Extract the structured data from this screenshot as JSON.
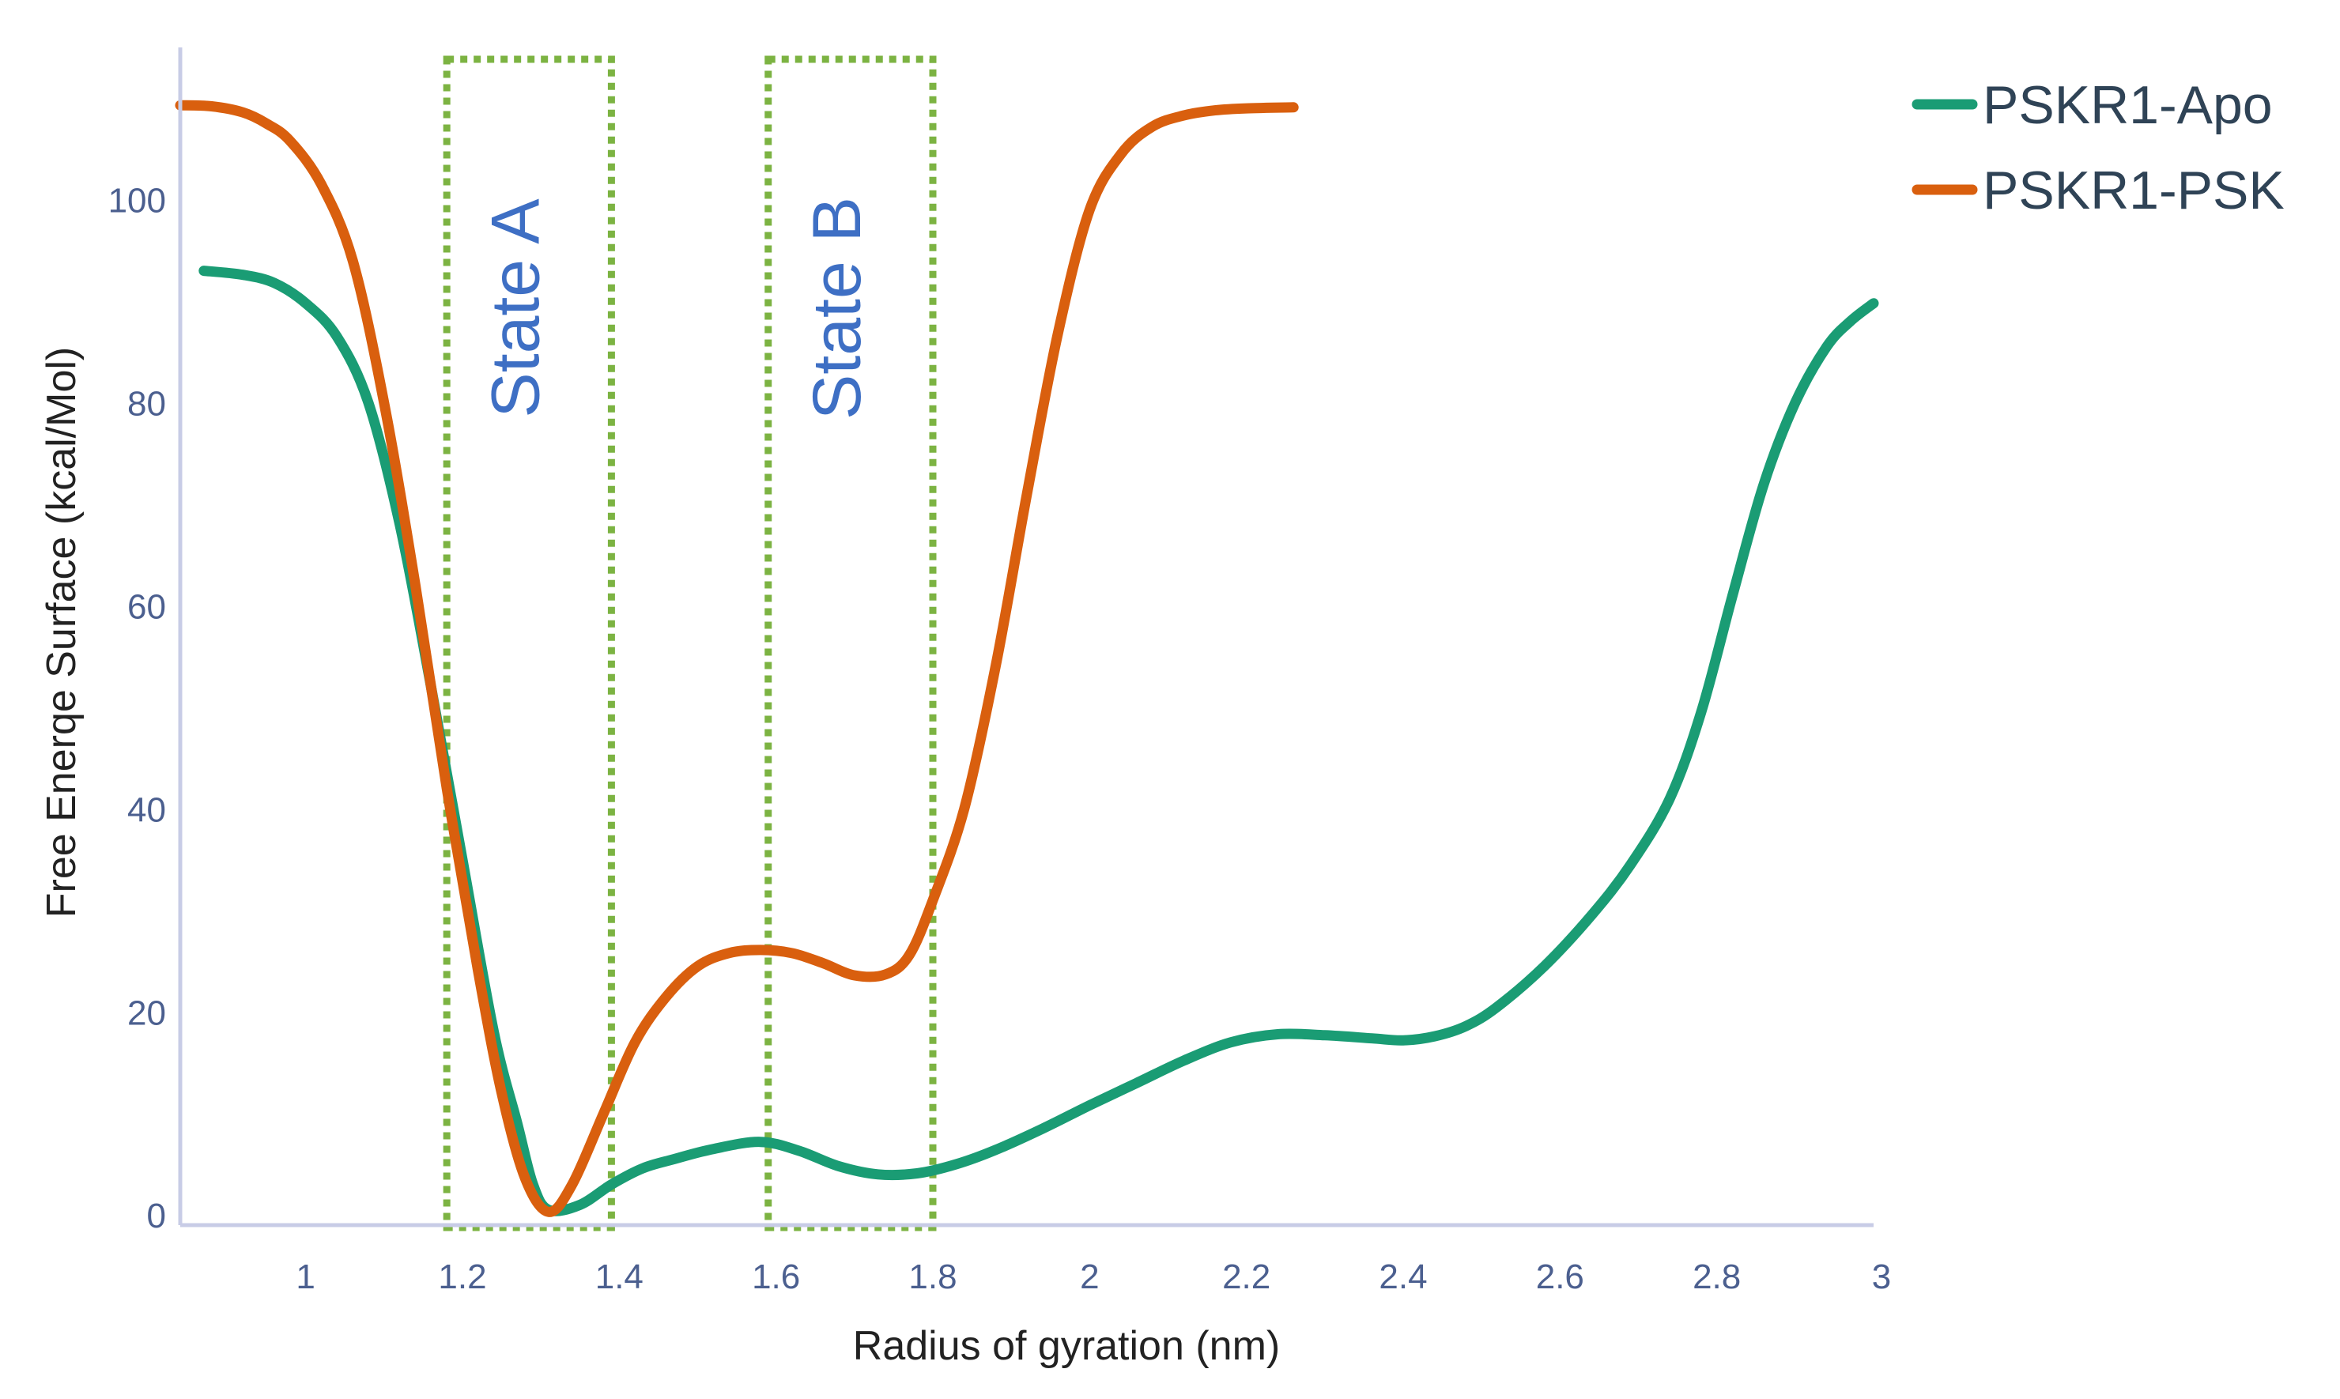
{
  "chart_data": {
    "type": "line",
    "xlabel": "Radius of gyration (nm)",
    "ylabel": "Free Enerqe Surface (kcal/Mol)",
    "xlim": [
      0.84,
      3.0
    ],
    "ylim": [
      -1,
      115
    ],
    "x_ticks": [
      "1",
      "1.2",
      "1.4",
      "1.6",
      "1.8",
      "2",
      "2.2",
      "2.4",
      "2.6",
      "2.8",
      "3"
    ],
    "y_ticks": [
      "0",
      "20",
      "40",
      "60",
      "80",
      "100"
    ],
    "grid": false,
    "legend_position": "top-right",
    "series": [
      {
        "name": "PSKR1-Apo",
        "color": "#1a9c74",
        "points": [
          [
            0.87,
            93
          ],
          [
            0.92,
            92.6
          ],
          [
            0.96,
            91.8
          ],
          [
            1.0,
            89.8
          ],
          [
            1.04,
            86.5
          ],
          [
            1.08,
            80
          ],
          [
            1.12,
            68
          ],
          [
            1.16,
            52
          ],
          [
            1.2,
            35
          ],
          [
            1.24,
            18
          ],
          [
            1.27,
            9
          ],
          [
            1.29,
            3
          ],
          [
            1.31,
            0.5
          ],
          [
            1.35,
            1
          ],
          [
            1.39,
            3
          ],
          [
            1.43,
            4.6
          ],
          [
            1.47,
            5.5
          ],
          [
            1.52,
            6.5
          ],
          [
            1.58,
            7.2
          ],
          [
            1.63,
            6.3
          ],
          [
            1.68,
            4.8
          ],
          [
            1.73,
            4
          ],
          [
            1.78,
            4.1
          ],
          [
            1.83,
            5
          ],
          [
            1.88,
            6.4
          ],
          [
            1.94,
            8.5
          ],
          [
            2.0,
            10.8
          ],
          [
            2.06,
            13
          ],
          [
            2.12,
            15.2
          ],
          [
            2.18,
            17
          ],
          [
            2.24,
            17.8
          ],
          [
            2.3,
            17.7
          ],
          [
            2.36,
            17.4
          ],
          [
            2.4,
            17.2
          ],
          [
            2.44,
            17.6
          ],
          [
            2.48,
            18.6
          ],
          [
            2.52,
            20.5
          ],
          [
            2.58,
            24.5
          ],
          [
            2.64,
            29.5
          ],
          [
            2.69,
            34.5
          ],
          [
            2.74,
            41
          ],
          [
            2.78,
            49.5
          ],
          [
            2.82,
            61
          ],
          [
            2.86,
            72
          ],
          [
            2.9,
            80
          ],
          [
            2.94,
            85.5
          ],
          [
            2.97,
            88
          ],
          [
            3.0,
            89.8
          ]
        ]
      },
      {
        "name": "PSKR1-PSK",
        "color": "#d95f0e",
        "points": [
          [
            0.84,
            109.3
          ],
          [
            0.88,
            109.2
          ],
          [
            0.92,
            108.6
          ],
          [
            0.95,
            107.5
          ],
          [
            0.98,
            105.8
          ],
          [
            1.02,
            101.5
          ],
          [
            1.06,
            94
          ],
          [
            1.1,
            80
          ],
          [
            1.14,
            62
          ],
          [
            1.18,
            42
          ],
          [
            1.22,
            24
          ],
          [
            1.25,
            12
          ],
          [
            1.28,
            3.6
          ],
          [
            1.31,
            0.3
          ],
          [
            1.34,
            3
          ],
          [
            1.38,
            10
          ],
          [
            1.42,
            17
          ],
          [
            1.46,
            21.5
          ],
          [
            1.5,
            24.5
          ],
          [
            1.54,
            25.8
          ],
          [
            1.58,
            26.1
          ],
          [
            1.62,
            25.8
          ],
          [
            1.66,
            24.8
          ],
          [
            1.7,
            23.6
          ],
          [
            1.74,
            23.7
          ],
          [
            1.77,
            25.6
          ],
          [
            1.8,
            31
          ],
          [
            1.84,
            40
          ],
          [
            1.88,
            54
          ],
          [
            1.92,
            71
          ],
          [
            1.96,
            87
          ],
          [
            2.0,
            99
          ],
          [
            2.04,
            104.5
          ],
          [
            2.08,
            107.2
          ],
          [
            2.12,
            108.3
          ],
          [
            2.16,
            108.8
          ],
          [
            2.2,
            109
          ],
          [
            2.26,
            109.1
          ]
        ]
      }
    ],
    "state_regions": [
      {
        "label": "State A",
        "x_start": 1.18,
        "x_end": 1.39
      },
      {
        "label": "State B",
        "x_start": 1.59,
        "x_end": 1.8
      }
    ],
    "colors": {
      "axis": "#c8cce6",
      "tick_label": "#4b5f8f",
      "state_box": "#7cb342",
      "state_label": "#3e6fc4"
    }
  }
}
